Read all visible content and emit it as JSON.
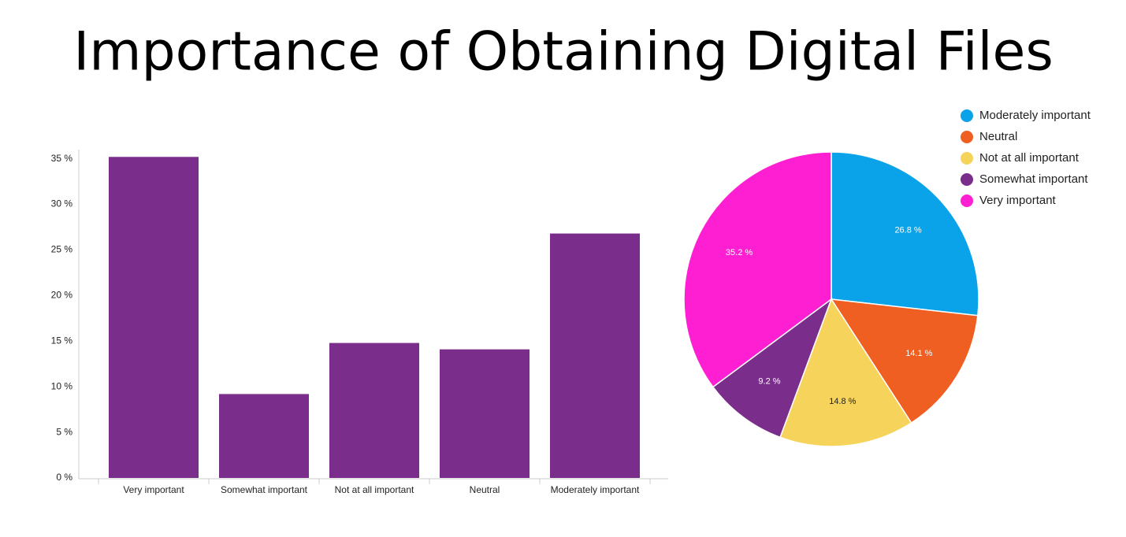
{
  "title": "Importance of Obtaining Digital Files",
  "chart_data": [
    {
      "type": "bar",
      "categories": [
        "Very important",
        "Somewhat important",
        "Not at all important",
        "Neutral",
        "Moderately important"
      ],
      "values": [
        35.2,
        9.2,
        14.8,
        14.1,
        26.8
      ],
      "color": "#7b2d8b",
      "ylim": [
        0,
        36
      ],
      "yticks": [
        {
          "value": 0,
          "label": "0 %"
        },
        {
          "value": 5,
          "label": "5 %"
        },
        {
          "value": 10,
          "label": "10 %"
        },
        {
          "value": 15,
          "label": "15 %"
        },
        {
          "value": 20,
          "label": "20 %"
        },
        {
          "value": 25,
          "label": "25 %"
        },
        {
          "value": 30,
          "label": "30 %"
        },
        {
          "value": 35,
          "label": "35 %"
        }
      ],
      "grid": false
    },
    {
      "type": "pie",
      "categories": [
        "Moderately important",
        "Neutral",
        "Not at all important",
        "Somewhat important",
        "Very important"
      ],
      "values": [
        26.8,
        14.1,
        14.8,
        9.2,
        35.2
      ],
      "value_labels": [
        "26.8 %",
        "14.1 %",
        "14.8 %",
        "9.2 %",
        "35.2 %"
      ],
      "colors": [
        "#0aa2e8",
        "#f05f22",
        "#f6d35b",
        "#7b2d8b",
        "#ff1fd2"
      ],
      "legend": "top-right"
    }
  ]
}
